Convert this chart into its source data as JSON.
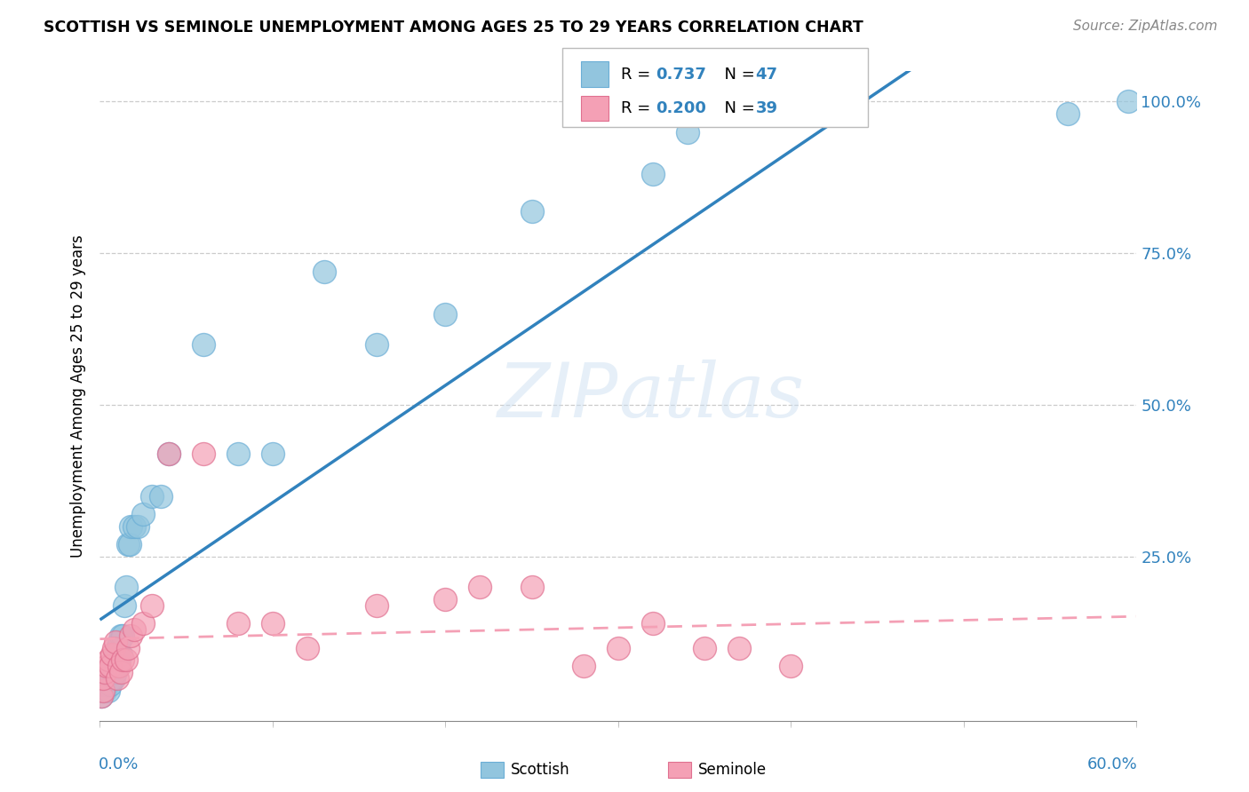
{
  "title": "SCOTTISH VS SEMINOLE UNEMPLOYMENT AMONG AGES 25 TO 29 YEARS CORRELATION CHART",
  "source": "Source: ZipAtlas.com",
  "ylabel": "Unemployment Among Ages 25 to 29 years",
  "y_ticks_right": [
    "100.0%",
    "75.0%",
    "50.0%",
    "25.0%"
  ],
  "scottish_color": "#92c5de",
  "scottish_edge": "#6baed6",
  "seminole_color": "#f4a0b5",
  "seminole_edge": "#e07090",
  "trend_scottish_color": "#3182bd",
  "trend_seminole_color": "#f4a0b5",
  "watermark": "ZIPatlas",
  "xlim": [
    0.0,
    0.6
  ],
  "ylim": [
    -0.02,
    1.05
  ],
  "scottish_x": [
    0.001,
    0.002,
    0.002,
    0.003,
    0.003,
    0.004,
    0.004,
    0.005,
    0.005,
    0.006,
    0.006,
    0.007,
    0.007,
    0.008,
    0.008,
    0.009,
    0.009,
    0.01,
    0.01,
    0.011,
    0.011,
    0.012,
    0.012,
    0.013,
    0.014,
    0.015,
    0.016,
    0.017,
    0.018,
    0.02,
    0.022,
    0.025,
    0.03,
    0.035,
    0.04,
    0.06,
    0.08,
    0.1,
    0.13,
    0.16,
    0.2,
    0.25,
    0.32,
    0.34,
    0.38,
    0.56,
    0.595
  ],
  "scottish_y": [
    0.02,
    0.03,
    0.04,
    0.03,
    0.05,
    0.04,
    0.06,
    0.03,
    0.06,
    0.04,
    0.06,
    0.05,
    0.07,
    0.05,
    0.08,
    0.06,
    0.09,
    0.07,
    0.1,
    0.08,
    0.11,
    0.09,
    0.12,
    0.12,
    0.17,
    0.2,
    0.27,
    0.27,
    0.3,
    0.3,
    0.3,
    0.32,
    0.35,
    0.35,
    0.42,
    0.6,
    0.42,
    0.42,
    0.72,
    0.6,
    0.65,
    0.82,
    0.88,
    0.95,
    0.98,
    0.98,
    1.0
  ],
  "seminole_x": [
    0.001,
    0.002,
    0.002,
    0.003,
    0.004,
    0.005,
    0.006,
    0.007,
    0.008,
    0.009,
    0.01,
    0.011,
    0.012,
    0.013,
    0.015,
    0.016,
    0.018,
    0.02,
    0.025,
    0.03,
    0.04,
    0.06,
    0.08,
    0.1,
    0.12,
    0.16,
    0.2,
    0.22,
    0.25,
    0.28,
    0.3,
    0.32,
    0.35,
    0.37,
    0.4
  ],
  "seminole_y": [
    0.02,
    0.03,
    0.05,
    0.06,
    0.07,
    0.08,
    0.07,
    0.09,
    0.1,
    0.11,
    0.05,
    0.07,
    0.06,
    0.08,
    0.08,
    0.1,
    0.12,
    0.13,
    0.14,
    0.17,
    0.42,
    0.42,
    0.14,
    0.14,
    0.1,
    0.17,
    0.18,
    0.2,
    0.2,
    0.07,
    0.1,
    0.14,
    0.1,
    0.1,
    0.07
  ],
  "background_color": "#ffffff",
  "grid_color": "#cccccc"
}
